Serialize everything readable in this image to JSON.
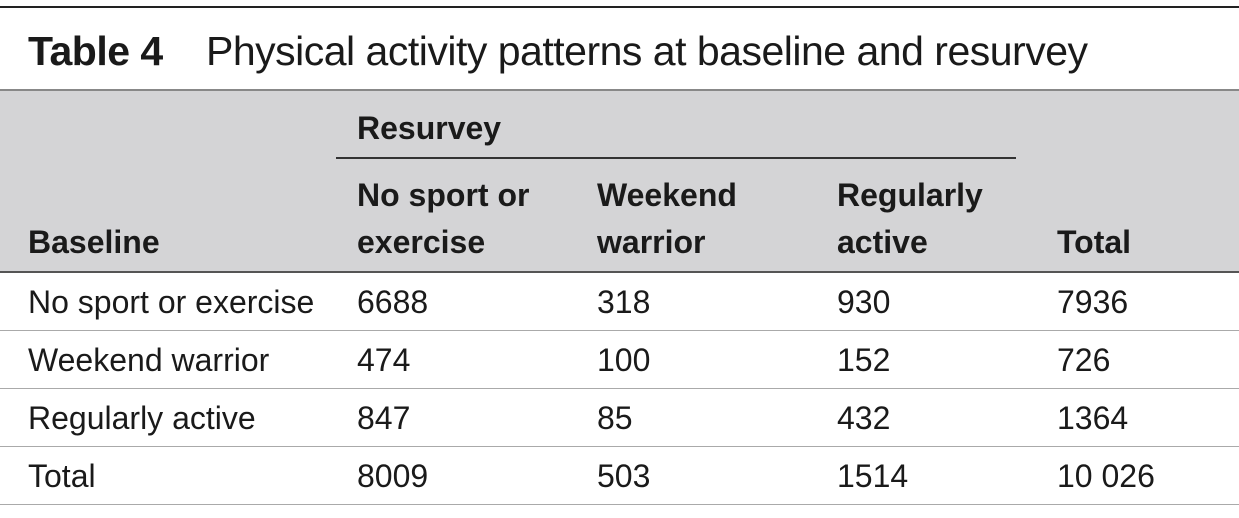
{
  "table": {
    "label": "Table 4",
    "title": "Physical activity patterns at baseline and resurvey",
    "group_header": "Resurvey",
    "row_header": "Baseline",
    "columns": [
      {
        "line1": "No sport or",
        "line2": "exercise"
      },
      {
        "line1": "Weekend",
        "line2": "warrior"
      },
      {
        "line1": "Regularly",
        "line2": "active"
      }
    ],
    "total_header": "Total",
    "rows": [
      {
        "label": "No sport or exercise",
        "values": [
          "6688",
          "318",
          "930",
          "7936"
        ]
      },
      {
        "label": "Weekend warrior",
        "values": [
          "474",
          "100",
          "152",
          "726"
        ]
      },
      {
        "label": "Regularly active",
        "values": [
          "847",
          "85",
          "432",
          "1364"
        ]
      },
      {
        "label": "Total",
        "values": [
          "8009",
          "503",
          "1514",
          "10 026"
        ]
      }
    ]
  }
}
